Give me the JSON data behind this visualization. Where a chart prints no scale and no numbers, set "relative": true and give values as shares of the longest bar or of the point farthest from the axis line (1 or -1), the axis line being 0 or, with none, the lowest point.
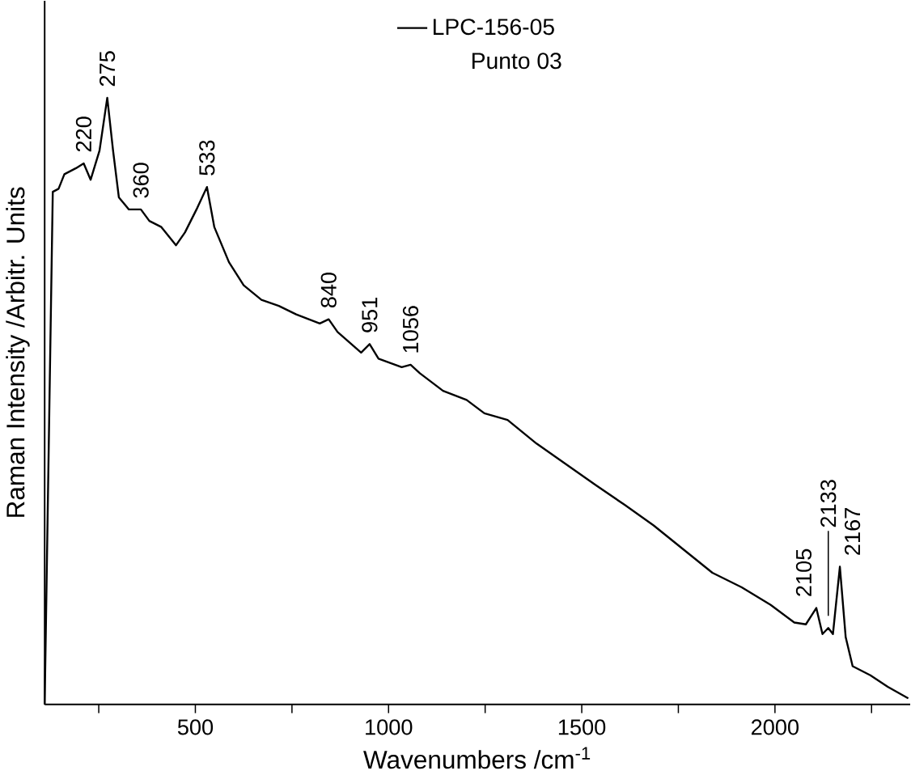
{
  "chart_data": {
    "type": "line",
    "relative": true,
    "xlabel": "Wavenumbers /cm$^{-1}$",
    "ylabel": "Raman Intensity /Arbitr. Units",
    "legend": "top",
    "xlim": [
      110,
      2350
    ],
    "xticks": [
      {
        "value": 250,
        "label": null
      },
      500,
      {
        "value": 750,
        "label": null
      },
      1000,
      {
        "value": 1250,
        "label": null
      },
      1500,
      {
        "value": 1750,
        "label": null
      },
      2000,
      {
        "value": 2250,
        "label": null
      }
    ],
    "series": [
      {
        "name": "LPC-156-05",
        "color": "#000000",
        "x": [
          110,
          131,
          146,
          161,
          176,
          191,
          211,
          229,
          252,
          272,
          287,
          302,
          328,
          359,
          381,
          412,
          450,
          473,
          503,
          530,
          549,
          587,
          625,
          671,
          716,
          761,
          822,
          845,
          868,
          929,
          951,
          974,
          1034,
          1057,
          1081,
          1141,
          1202,
          1248,
          1308,
          1383,
          1459,
          1535,
          1611,
          1686,
          1762,
          1838,
          1914,
          1989,
          2050,
          2080,
          2107,
          2123,
          2138,
          2150,
          2168,
          2183,
          2201,
          2247,
          2292,
          2345
        ],
        "values": [
          0,
          0.845,
          0.85,
          0.874,
          0.879,
          0.884,
          0.892,
          0.865,
          0.913,
          1.0,
          0.913,
          0.836,
          0.816,
          0.816,
          0.797,
          0.787,
          0.757,
          0.778,
          0.816,
          0.853,
          0.787,
          0.729,
          0.691,
          0.667,
          0.657,
          0.643,
          0.628,
          0.635,
          0.614,
          0.58,
          0.594,
          0.57,
          0.556,
          0.56,
          0.546,
          0.517,
          0.502,
          0.48,
          0.469,
          0.43,
          0.396,
          0.362,
          0.329,
          0.295,
          0.256,
          0.217,
          0.193,
          0.164,
          0.135,
          0.132,
          0.159,
          0.116,
          0.126,
          0.116,
          0.227,
          0.111,
          0.063,
          0.048,
          0.029,
          0.01
        ]
      }
    ],
    "annotations": [
      "Punto 03",
      {
        "text": "220",
        "x": 211,
        "y": 0.892
      },
      {
        "text": "275",
        "x": 272,
        "y": 1.0
      },
      {
        "text": "360",
        "x": 359,
        "y": 0.816
      },
      {
        "text": "533",
        "x": 530,
        "y": 0.853
      },
      {
        "text": "840",
        "x": 845,
        "y": 0.635
      },
      {
        "text": "951",
        "x": 951,
        "y": 0.594
      },
      {
        "text": "1056",
        "x": 1057,
        "y": 0.56
      },
      {
        "text": "2105",
        "x": 2107,
        "y": 0.159
      },
      {
        "text": "2133",
        "x": 2138,
        "y": 0.126
      },
      {
        "text": "2167",
        "x": 2168,
        "y": 0.227
      }
    ]
  }
}
